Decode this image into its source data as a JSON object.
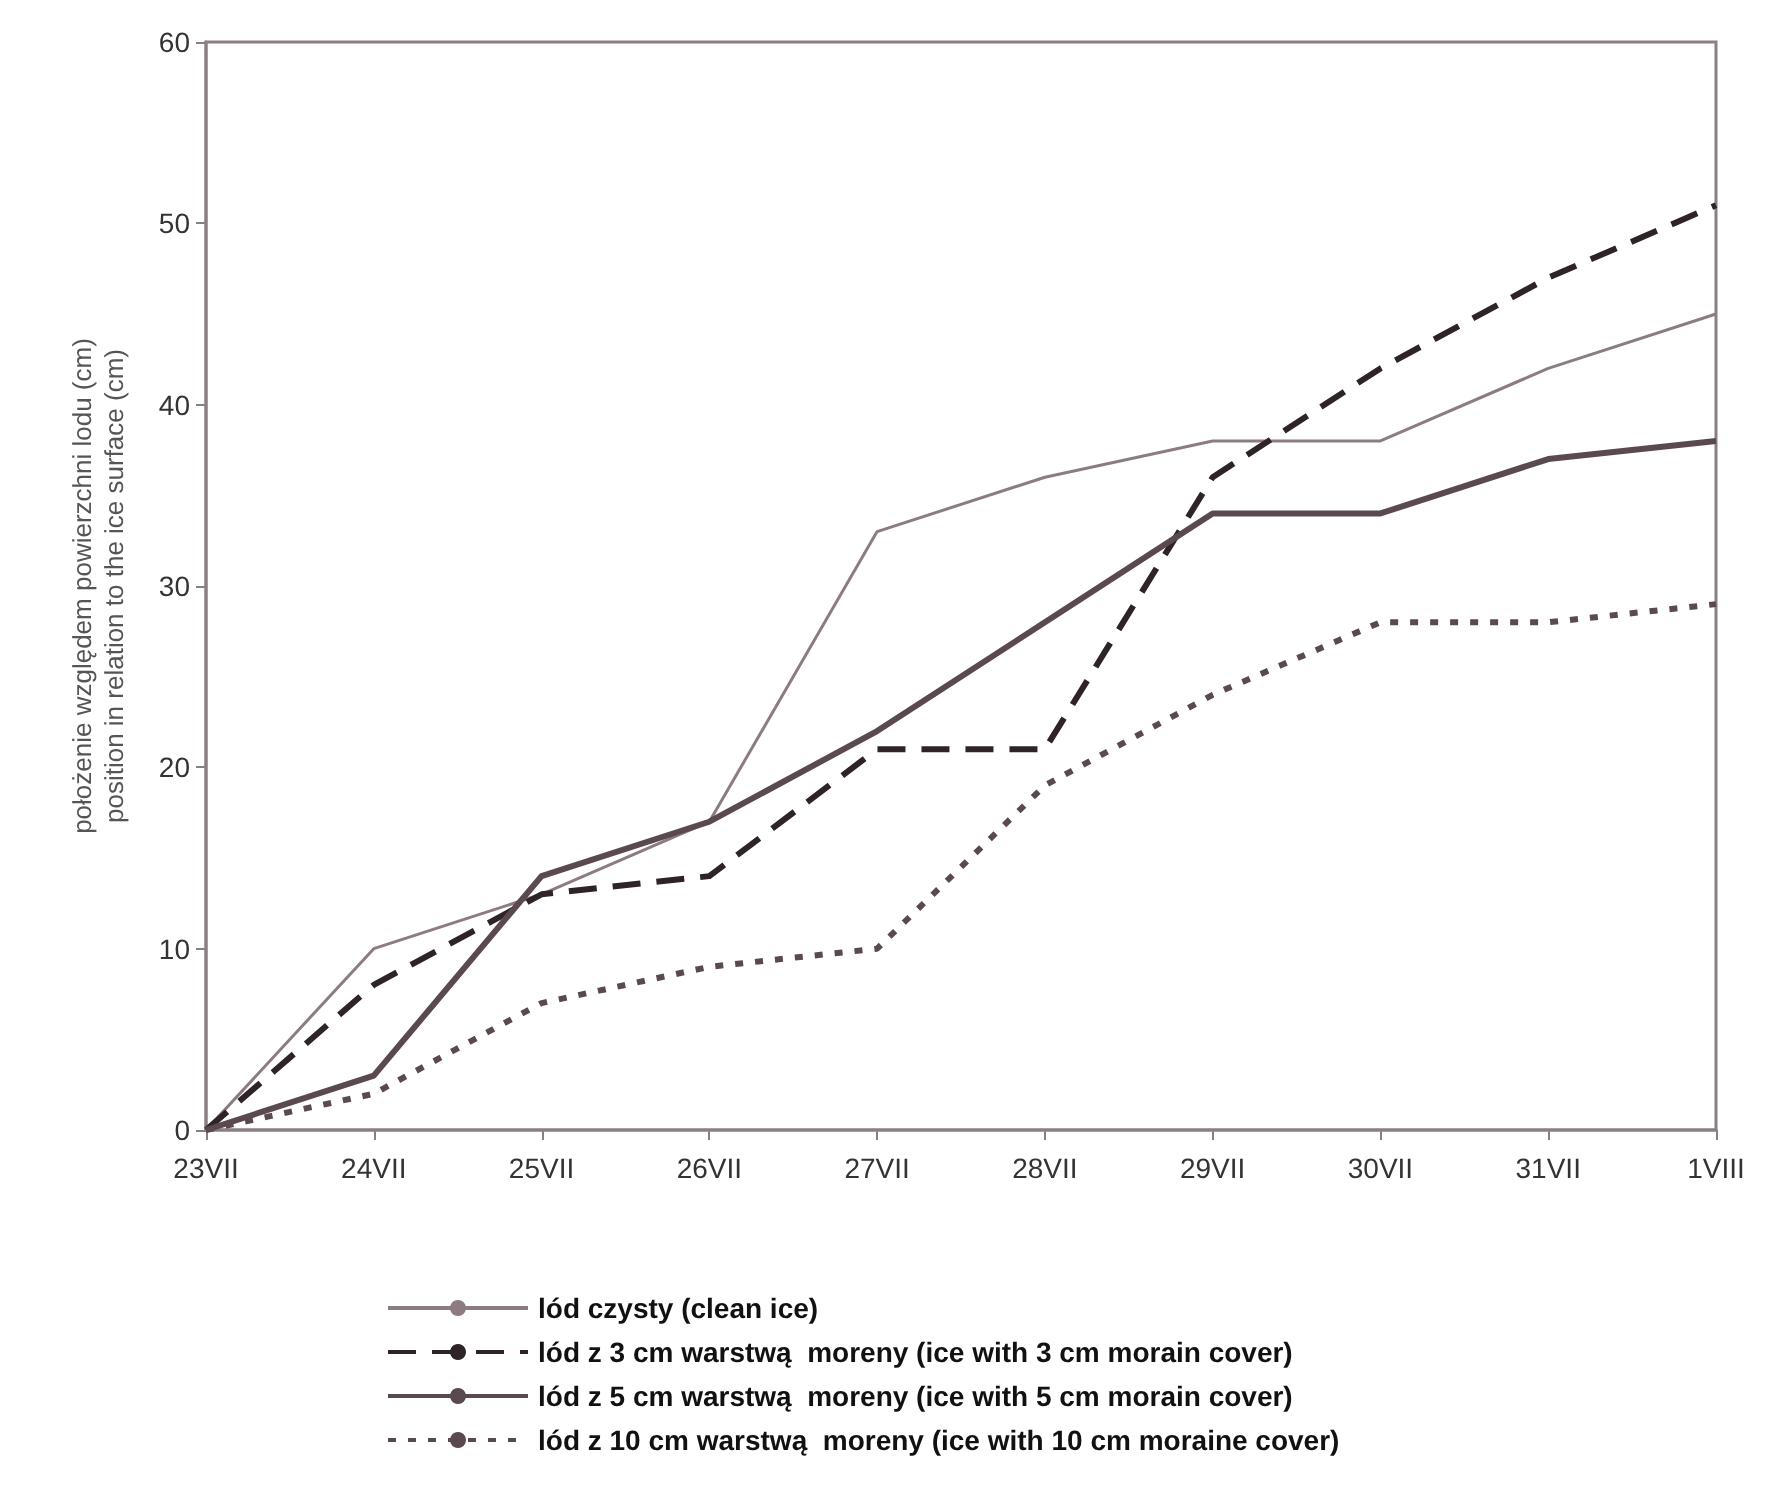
{
  "chart_data": {
    "type": "line",
    "ylabel": "położenie względem powierzchni lodu (cm)\nposition in relation to the ice surface (cm)",
    "categories": [
      "23VII",
      "24VII",
      "25VII",
      "26VII",
      "27VII",
      "28VII",
      "29VII",
      "30VII",
      "31VII",
      "1VIII"
    ],
    "series": [
      {
        "name": "lód czysty (clean ice)",
        "color": "#8c7c80",
        "line_style": "solid",
        "values": [
          0,
          10,
          13,
          17,
          33,
          36,
          38,
          38,
          42,
          45
        ]
      },
      {
        "name": "lód z 3 cm warstwą  moreny (ice with 3 cm morain cover)",
        "color": "#2e2428",
        "line_style": "dashed",
        "values": [
          0,
          8,
          13,
          14,
          21,
          21,
          36,
          42,
          47,
          51
        ]
      },
      {
        "name": "lód z 5 cm warstwą  moreny (ice with 5 cm morain cover)",
        "color": "#5a4a50",
        "line_style": "solid",
        "values": [
          0,
          3,
          14,
          17,
          22,
          28,
          34,
          34,
          37,
          38
        ]
      },
      {
        "name": "lód z 10 cm warstwą  moreny (ice with 10 cm moraine cover)",
        "color": "#5a4a50",
        "line_style": "dotted",
        "values": [
          0,
          2,
          7,
          9,
          10,
          19,
          24,
          28,
          28,
          29
        ]
      }
    ],
    "ylim": [
      0,
      60
    ],
    "yticks": [
      0,
      10,
      20,
      30,
      40,
      50,
      60
    ],
    "grid": false,
    "legend": "bottom",
    "marker": "none"
  }
}
